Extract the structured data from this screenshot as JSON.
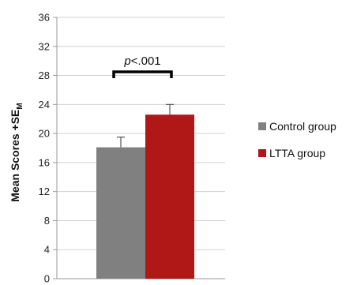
{
  "chart_data": {
    "type": "bar",
    "title": "",
    "xlabel": "",
    "ylabel": "Mean Scores +SE",
    "ylabel_subscript": "M",
    "ylim": [
      0,
      36
    ],
    "yticks": [
      0,
      4,
      8,
      12,
      16,
      20,
      24,
      28,
      32,
      36
    ],
    "grid": true,
    "legend_position": "right",
    "series": [
      {
        "name": "Control group",
        "value": 18.1,
        "error": 1.4,
        "color": "#808080"
      },
      {
        "name": "LTTA group",
        "value": 22.6,
        "error": 1.4,
        "color": "#b01818"
      }
    ],
    "annotation": {
      "italic": "p",
      "text": "<.001"
    }
  }
}
